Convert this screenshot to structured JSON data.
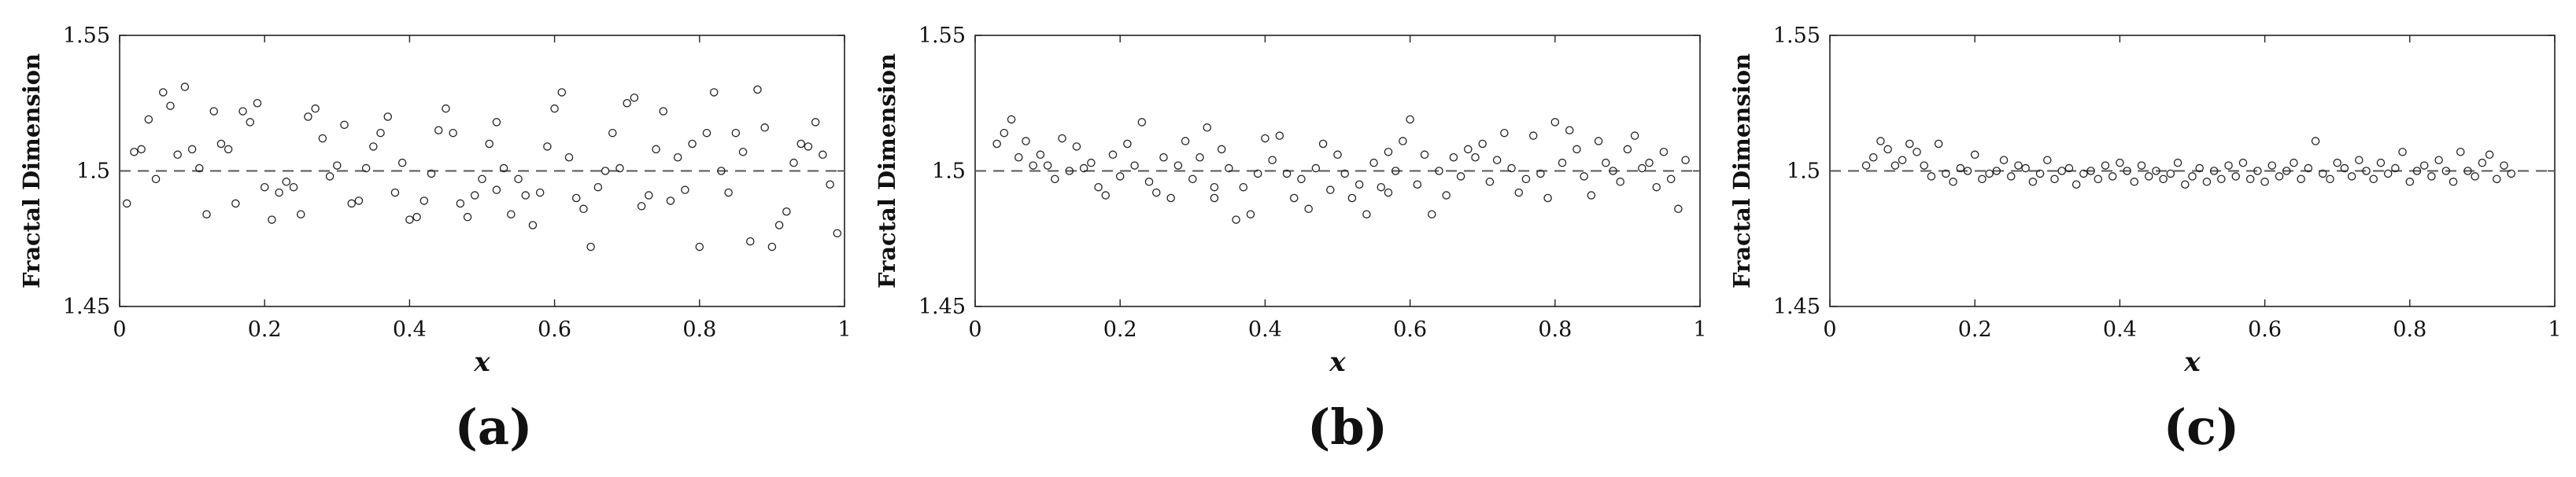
{
  "chart_data": [
    {
      "panel": "(a)",
      "type": "scatter",
      "xlabel": "x",
      "ylabel": "Fractal Dimension",
      "xlim": [
        0,
        1
      ],
      "ylim": [
        1.45,
        1.55
      ],
      "x_ticks": [
        "0",
        "0.2",
        "0.4",
        "0.6",
        "0.8",
        "1"
      ],
      "y_ticks": [
        "1.45",
        "1.5",
        "1.55"
      ],
      "reference_line": 1.5,
      "marker": "open-circle",
      "points": [
        [
          0.01,
          1.488
        ],
        [
          0.02,
          1.507
        ],
        [
          0.03,
          1.508
        ],
        [
          0.04,
          1.519
        ],
        [
          0.05,
          1.497
        ],
        [
          0.06,
          1.529
        ],
        [
          0.07,
          1.524
        ],
        [
          0.08,
          1.506
        ],
        [
          0.09,
          1.531
        ],
        [
          0.1,
          1.508
        ],
        [
          0.11,
          1.501
        ],
        [
          0.12,
          1.484
        ],
        [
          0.13,
          1.522
        ],
        [
          0.14,
          1.51
        ],
        [
          0.15,
          1.508
        ],
        [
          0.16,
          1.488
        ],
        [
          0.17,
          1.522
        ],
        [
          0.18,
          1.518
        ],
        [
          0.19,
          1.525
        ],
        [
          0.2,
          1.494
        ],
        [
          0.21,
          1.482
        ],
        [
          0.22,
          1.492
        ],
        [
          0.23,
          1.496
        ],
        [
          0.24,
          1.494
        ],
        [
          0.25,
          1.484
        ],
        [
          0.26,
          1.52
        ],
        [
          0.27,
          1.523
        ],
        [
          0.28,
          1.512
        ],
        [
          0.29,
          1.498
        ],
        [
          0.3,
          1.502
        ],
        [
          0.31,
          1.517
        ],
        [
          0.32,
          1.488
        ],
        [
          0.33,
          1.489
        ],
        [
          0.34,
          1.501
        ],
        [
          0.35,
          1.509
        ],
        [
          0.36,
          1.514
        ],
        [
          0.37,
          1.52
        ],
        [
          0.38,
          1.492
        ],
        [
          0.39,
          1.503
        ],
        [
          0.4,
          1.482
        ],
        [
          0.41,
          1.483
        ],
        [
          0.42,
          1.489
        ],
        [
          0.43,
          1.499
        ],
        [
          0.44,
          1.515
        ],
        [
          0.45,
          1.523
        ],
        [
          0.46,
          1.514
        ],
        [
          0.47,
          1.488
        ],
        [
          0.48,
          1.483
        ],
        [
          0.49,
          1.491
        ],
        [
          0.5,
          1.497
        ],
        [
          0.51,
          1.51
        ],
        [
          0.52,
          1.518
        ],
        [
          0.53,
          1.501
        ],
        [
          0.54,
          1.484
        ],
        [
          0.55,
          1.497
        ],
        [
          0.56,
          1.491
        ],
        [
          0.57,
          1.48
        ],
        [
          0.58,
          1.492
        ],
        [
          0.59,
          1.509
        ],
        [
          0.6,
          1.523
        ],
        [
          0.61,
          1.529
        ],
        [
          0.62,
          1.505
        ],
        [
          0.63,
          1.49
        ],
        [
          0.64,
          1.486
        ],
        [
          0.65,
          1.472
        ],
        [
          0.66,
          1.494
        ],
        [
          0.67,
          1.5
        ],
        [
          0.68,
          1.514
        ],
        [
          0.69,
          1.501
        ],
        [
          0.7,
          1.525
        ],
        [
          0.71,
          1.527
        ],
        [
          0.72,
          1.487
        ],
        [
          0.73,
          1.491
        ],
        [
          0.74,
          1.508
        ],
        [
          0.75,
          1.522
        ],
        [
          0.76,
          1.489
        ],
        [
          0.77,
          1.505
        ],
        [
          0.78,
          1.493
        ],
        [
          0.79,
          1.51
        ],
        [
          0.8,
          1.472
        ],
        [
          0.81,
          1.514
        ],
        [
          0.82,
          1.529
        ],
        [
          0.83,
          1.5
        ],
        [
          0.84,
          1.492
        ],
        [
          0.85,
          1.514
        ],
        [
          0.86,
          1.507
        ],
        [
          0.87,
          1.474
        ],
        [
          0.88,
          1.53
        ],
        [
          0.89,
          1.516
        ],
        [
          0.9,
          1.472
        ],
        [
          0.91,
          1.48
        ],
        [
          0.92,
          1.485
        ],
        [
          0.93,
          1.503
        ],
        [
          0.94,
          1.51
        ],
        [
          0.95,
          1.509
        ],
        [
          0.96,
          1.518
        ],
        [
          0.97,
          1.506
        ],
        [
          0.98,
          1.495
        ],
        [
          0.99,
          1.477
        ],
        [
          0.52,
          1.493
        ]
      ]
    },
    {
      "panel": "(b)",
      "type": "scatter",
      "xlabel": "x",
      "ylabel": "Fractal Dimension",
      "xlim": [
        0,
        1
      ],
      "ylim": [
        1.45,
        1.55
      ],
      "x_ticks": [
        "0",
        "0.2",
        "0.4",
        "0.6",
        "0.8",
        "1"
      ],
      "y_ticks": [
        "1.45",
        "1.5",
        "1.55"
      ],
      "reference_line": 1.5,
      "marker": "open-circle",
      "points": [
        [
          0.03,
          1.51
        ],
        [
          0.04,
          1.514
        ],
        [
          0.05,
          1.519
        ],
        [
          0.06,
          1.505
        ],
        [
          0.07,
          1.511
        ],
        [
          0.08,
          1.502
        ],
        [
          0.09,
          1.506
        ],
        [
          0.1,
          1.502
        ],
        [
          0.11,
          1.497
        ],
        [
          0.12,
          1.512
        ],
        [
          0.13,
          1.5
        ],
        [
          0.14,
          1.509
        ],
        [
          0.15,
          1.501
        ],
        [
          0.16,
          1.503
        ],
        [
          0.17,
          1.494
        ],
        [
          0.18,
          1.491
        ],
        [
          0.19,
          1.506
        ],
        [
          0.2,
          1.498
        ],
        [
          0.21,
          1.51
        ],
        [
          0.22,
          1.502
        ],
        [
          0.23,
          1.518
        ],
        [
          0.24,
          1.496
        ],
        [
          0.25,
          1.492
        ],
        [
          0.26,
          1.505
        ],
        [
          0.27,
          1.49
        ],
        [
          0.28,
          1.502
        ],
        [
          0.29,
          1.511
        ],
        [
          0.3,
          1.497
        ],
        [
          0.31,
          1.505
        ],
        [
          0.32,
          1.516
        ],
        [
          0.33,
          1.494
        ],
        [
          0.34,
          1.508
        ],
        [
          0.35,
          1.501
        ],
        [
          0.36,
          1.482
        ],
        [
          0.37,
          1.494
        ],
        [
          0.38,
          1.484
        ],
        [
          0.39,
          1.499
        ],
        [
          0.4,
          1.512
        ],
        [
          0.41,
          1.504
        ],
        [
          0.42,
          1.513
        ],
        [
          0.43,
          1.499
        ],
        [
          0.44,
          1.49
        ],
        [
          0.45,
          1.497
        ],
        [
          0.46,
          1.486
        ],
        [
          0.47,
          1.501
        ],
        [
          0.48,
          1.51
        ],
        [
          0.49,
          1.493
        ],
        [
          0.5,
          1.506
        ],
        [
          0.51,
          1.499
        ],
        [
          0.52,
          1.49
        ],
        [
          0.53,
          1.495
        ],
        [
          0.54,
          1.484
        ],
        [
          0.55,
          1.503
        ],
        [
          0.56,
          1.494
        ],
        [
          0.57,
          1.507
        ],
        [
          0.58,
          1.5
        ],
        [
          0.59,
          1.511
        ],
        [
          0.6,
          1.519
        ],
        [
          0.61,
          1.495
        ],
        [
          0.62,
          1.506
        ],
        [
          0.63,
          1.484
        ],
        [
          0.64,
          1.5
        ],
        [
          0.65,
          1.491
        ],
        [
          0.66,
          1.505
        ],
        [
          0.67,
          1.498
        ],
        [
          0.68,
          1.508
        ],
        [
          0.69,
          1.505
        ],
        [
          0.7,
          1.51
        ],
        [
          0.71,
          1.496
        ],
        [
          0.72,
          1.504
        ],
        [
          0.73,
          1.514
        ],
        [
          0.74,
          1.501
        ],
        [
          0.75,
          1.492
        ],
        [
          0.76,
          1.497
        ],
        [
          0.77,
          1.513
        ],
        [
          0.78,
          1.499
        ],
        [
          0.79,
          1.49
        ],
        [
          0.8,
          1.518
        ],
        [
          0.81,
          1.503
        ],
        [
          0.82,
          1.515
        ],
        [
          0.83,
          1.508
        ],
        [
          0.84,
          1.498
        ],
        [
          0.85,
          1.491
        ],
        [
          0.86,
          1.511
        ],
        [
          0.87,
          1.503
        ],
        [
          0.88,
          1.5
        ],
        [
          0.89,
          1.496
        ],
        [
          0.9,
          1.508
        ],
        [
          0.91,
          1.513
        ],
        [
          0.92,
          1.501
        ],
        [
          0.93,
          1.503
        ],
        [
          0.94,
          1.494
        ],
        [
          0.95,
          1.507
        ],
        [
          0.96,
          1.497
        ],
        [
          0.97,
          1.486
        ],
        [
          0.98,
          1.504
        ],
        [
          0.33,
          1.49
        ],
        [
          0.57,
          1.492
        ]
      ]
    },
    {
      "panel": "(c)",
      "type": "scatter",
      "xlabel": "x",
      "ylabel": "Fractal Dimension",
      "xlim": [
        0,
        1
      ],
      "ylim": [
        1.45,
        1.55
      ],
      "x_ticks": [
        "0",
        "0.2",
        "0.4",
        "0.6",
        "0.8",
        "1"
      ],
      "y_ticks": [
        "1.45",
        "1.5",
        "1.55"
      ],
      "reference_line": 1.5,
      "marker": "open-circle",
      "points": [
        [
          0.05,
          1.502
        ],
        [
          0.06,
          1.505
        ],
        [
          0.07,
          1.511
        ],
        [
          0.08,
          1.508
        ],
        [
          0.09,
          1.502
        ],
        [
          0.1,
          1.504
        ],
        [
          0.11,
          1.51
        ],
        [
          0.12,
          1.507
        ],
        [
          0.13,
          1.502
        ],
        [
          0.14,
          1.498
        ],
        [
          0.15,
          1.51
        ],
        [
          0.16,
          1.499
        ],
        [
          0.17,
          1.496
        ],
        [
          0.18,
          1.501
        ],
        [
          0.19,
          1.5
        ],
        [
          0.2,
          1.506
        ],
        [
          0.21,
          1.497
        ],
        [
          0.22,
          1.499
        ],
        [
          0.23,
          1.5
        ],
        [
          0.24,
          1.504
        ],
        [
          0.25,
          1.498
        ],
        [
          0.26,
          1.502
        ],
        [
          0.27,
          1.501
        ],
        [
          0.28,
          1.496
        ],
        [
          0.29,
          1.499
        ],
        [
          0.3,
          1.504
        ],
        [
          0.31,
          1.497
        ],
        [
          0.32,
          1.5
        ],
        [
          0.33,
          1.501
        ],
        [
          0.34,
          1.495
        ],
        [
          0.35,
          1.499
        ],
        [
          0.36,
          1.5
        ],
        [
          0.37,
          1.497
        ],
        [
          0.38,
          1.502
        ],
        [
          0.39,
          1.498
        ],
        [
          0.4,
          1.503
        ],
        [
          0.41,
          1.5
        ],
        [
          0.42,
          1.496
        ],
        [
          0.43,
          1.502
        ],
        [
          0.44,
          1.498
        ],
        [
          0.45,
          1.5
        ],
        [
          0.46,
          1.497
        ],
        [
          0.47,
          1.499
        ],
        [
          0.48,
          1.503
        ],
        [
          0.49,
          1.495
        ],
        [
          0.5,
          1.498
        ],
        [
          0.51,
          1.501
        ],
        [
          0.52,
          1.496
        ],
        [
          0.53,
          1.5
        ],
        [
          0.54,
          1.497
        ],
        [
          0.55,
          1.502
        ],
        [
          0.56,
          1.498
        ],
        [
          0.57,
          1.503
        ],
        [
          0.58,
          1.497
        ],
        [
          0.59,
          1.5
        ],
        [
          0.6,
          1.496
        ],
        [
          0.61,
          1.502
        ],
        [
          0.62,
          1.498
        ],
        [
          0.63,
          1.5
        ],
        [
          0.64,
          1.503
        ],
        [
          0.65,
          1.497
        ],
        [
          0.66,
          1.501
        ],
        [
          0.67,
          1.511
        ],
        [
          0.68,
          1.499
        ],
        [
          0.69,
          1.497
        ],
        [
          0.7,
          1.503
        ],
        [
          0.71,
          1.501
        ],
        [
          0.72,
          1.498
        ],
        [
          0.73,
          1.504
        ],
        [
          0.74,
          1.5
        ],
        [
          0.75,
          1.497
        ],
        [
          0.76,
          1.503
        ],
        [
          0.77,
          1.499
        ],
        [
          0.78,
          1.501
        ],
        [
          0.79,
          1.507
        ],
        [
          0.8,
          1.496
        ],
        [
          0.81,
          1.5
        ],
        [
          0.82,
          1.502
        ],
        [
          0.83,
          1.498
        ],
        [
          0.84,
          1.504
        ],
        [
          0.85,
          1.5
        ],
        [
          0.86,
          1.496
        ],
        [
          0.87,
          1.507
        ],
        [
          0.88,
          1.5
        ],
        [
          0.89,
          1.498
        ],
        [
          0.9,
          1.503
        ],
        [
          0.91,
          1.506
        ],
        [
          0.92,
          1.497
        ],
        [
          0.93,
          1.502
        ],
        [
          0.94,
          1.499
        ]
      ]
    }
  ],
  "panels": [
    {
      "label": "(a)"
    },
    {
      "label": "(b)"
    },
    {
      "label": "(c)"
    }
  ]
}
